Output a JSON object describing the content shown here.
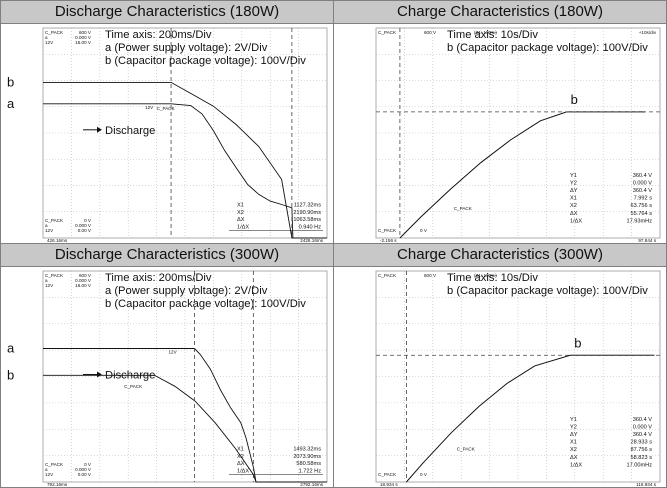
{
  "panels": [
    {
      "id": "dis180",
      "title": "Discharge Characteristics (180W)",
      "kind": "discharge",
      "notes": [
        "Time axis: 200ms/Div",
        "a (Power supply voltage): 2V/Div",
        "b (Capacitor package voltage): 100V/Div"
      ],
      "trace_label_a": "a",
      "trace_label_b": "b",
      "arrow_text": "Discharge",
      "in_trace_12v": "12V",
      "in_trace_cpack": "C_PACK",
      "readout": [
        {
          "k": "X1",
          "v": "1127.32ms"
        },
        {
          "k": "X2",
          "v": "2190.90ms"
        },
        {
          "k": "ΔX",
          "v": "1063.58ms"
        },
        {
          "k": "1/ΔX",
          "v": "0.940 Hz"
        }
      ],
      "corner_tl": [
        "C_PACK",
        "a",
        "12V"
      ],
      "corner_tr": [
        "600 V",
        "0.000 V",
        "15.00 V"
      ],
      "corner_bl": [
        "C_PACK",
        "a",
        "12V"
      ],
      "corner_br": [
        "0 V",
        "0.000 V",
        "0.00 V"
      ],
      "x_left": "426.16ms",
      "x_right": "2426.16ms",
      "chart_data": {
        "type": "line",
        "x_unit": "ms",
        "series": [
          {
            "name": "a",
            "x": [
              0,
              1127.32,
              1300,
              1400,
              1500,
              1600,
              1700,
              1800,
              1900,
              2000,
              2100,
              2190.9,
              2200,
              2500
            ],
            "y": [
              4.0,
              4.0,
              3.95,
              3.7,
              3.2,
              2.6,
              2.1,
              1.6,
              1.3,
              1.1,
              1.0,
              0.9,
              0.0,
              0.0
            ]
          },
          {
            "name": "b",
            "x": [
              0,
              1127.32,
              1300,
              1500,
              1700,
              1900,
              2100,
              2190.9,
              2300,
              2500
            ],
            "y": [
              4.25,
              4.25,
              3.95,
              3.6,
              3.1,
              2.5,
              1.6,
              0.0,
              0.0,
              0.0
            ]
          }
        ]
      }
    },
    {
      "id": "chg180",
      "title": "Charge Characteristics (180W)",
      "kind": "charge",
      "notes": [
        "Time axis: 10s/Div",
        "b (Capacitor package voltage): 100V/Div"
      ],
      "trace_label_b": "b",
      "in_trace_cpack": "C_PACK",
      "readout": [
        {
          "k": "Y1",
          "v": "360.4 V"
        },
        {
          "k": "Y2",
          "v": "0.000 V"
        },
        {
          "k": "ΔY",
          "v": "360.4 V"
        },
        {
          "k": "X1",
          "v": "7.992 s"
        },
        {
          "k": "X2",
          "v": "63.756 s"
        },
        {
          "k": "ΔX",
          "v": "55.764 s"
        },
        {
          "k": "1/ΔX",
          "v": "17.93mHz"
        }
      ],
      "corner_tl": [
        "C_PACK",
        "",
        ""
      ],
      "corner_tr": [
        "600 V",
        "(Z1: 100%)",
        "+10s/div"
      ],
      "corner_bl": [
        "C_PACK",
        "",
        "0 V"
      ],
      "x_left": "-2.156 s",
      "x_right": "97.844 s",
      "chart_data": {
        "type": "line",
        "x_unit": "s",
        "series": [
          {
            "name": "b",
            "x": [
              7.992,
              15,
              25,
              35,
              45,
              55,
              63.756,
              75,
              90
            ],
            "y": [
              0,
              60,
              140,
              215,
              280,
              335,
              360.4,
              360.4,
              360.4
            ]
          }
        ]
      }
    },
    {
      "id": "dis300",
      "title": "Discharge Characteristics (300W)",
      "kind": "discharge",
      "notes": [
        "Time axis: 200ms/Div",
        "a (Power supply voltage): 2V/Div",
        "b (Capacitor package voltage): 100V/Div"
      ],
      "trace_label_a": "a",
      "trace_label_b": "b",
      "arrow_text": "Discharge",
      "in_trace_12v": "12V",
      "in_trace_cpack": "C_PACK",
      "readout": [
        {
          "k": "X1",
          "v": "1493.32ms"
        },
        {
          "k": "X2",
          "v": "2073.90ms"
        },
        {
          "k": "ΔX",
          "v": "580.58ms"
        },
        {
          "k": "1/ΔX",
          "v": "1.722 Hz"
        }
      ],
      "corner_tl": [
        "C_PACK",
        "a",
        "12V"
      ],
      "corner_tr": [
        "600 V",
        "0.000 V",
        "16.00 V"
      ],
      "corner_bl": [
        "C_PACK",
        "a",
        "12V"
      ],
      "corner_br": [
        "0 V",
        "0.000 V",
        "0.00 V"
      ],
      "x_left": "792.16ms",
      "x_right": "2792.16ms",
      "chart_data": {
        "type": "line",
        "x_unit": "ms",
        "series": [
          {
            "name": "a",
            "x": [
              0,
              1493.32,
              1550,
              1650,
              1750,
              1850,
              1950,
              2000,
              2073.9,
              2100,
              2800
            ],
            "y": [
              4.5,
              4.5,
              4.3,
              3.8,
              3.1,
              2.5,
              2.0,
              1.5,
              0.5,
              0.0,
              0.0
            ]
          },
          {
            "name": "b",
            "x": [
              0,
              1100,
              1300,
              1500,
              1700,
              1900,
              2073.9,
              2100,
              2800
            ],
            "y": [
              2.9,
              2.9,
              2.6,
              2.2,
              1.6,
              0.9,
              0.2,
              0.0,
              0.0
            ]
          }
        ]
      }
    },
    {
      "id": "chg300",
      "title": "Charge Characteristics (300W)",
      "kind": "charge",
      "notes": [
        "Time axis: 10s/Div",
        "b (Capacitor package voltage): 100V/Div"
      ],
      "trace_label_b": "b",
      "in_trace_cpack": "C_PACK",
      "readout": [
        {
          "k": "Y1",
          "v": "360.4 V"
        },
        {
          "k": "Y2",
          "v": "0.000 V"
        },
        {
          "k": "ΔY",
          "v": "360.4 V"
        },
        {
          "k": "X1",
          "v": "28.933 s"
        },
        {
          "k": "X2",
          "v": "87.756 s"
        },
        {
          "k": "ΔX",
          "v": "58.823 s"
        },
        {
          "k": "1/ΔX",
          "v": "17.00mHz"
        }
      ],
      "corner_tl": [
        "C_PACK",
        "",
        ""
      ],
      "corner_tr": [
        "600 V",
        "(Z1: 100%)",
        ""
      ],
      "corner_bl": [
        "C_PACK",
        "",
        "0 V"
      ],
      "x_left": "18.934 s",
      "x_right": "118.934 s",
      "chart_data": {
        "type": "line",
        "x_unit": "s",
        "series": [
          {
            "name": "b",
            "x": [
              28.933,
              35,
              45,
              55,
              65,
              75,
              87.756,
              100,
              118
            ],
            "y": [
              0,
              55,
              140,
              215,
              280,
              330,
              360.4,
              360.4,
              360.4
            ]
          }
        ]
      }
    }
  ]
}
